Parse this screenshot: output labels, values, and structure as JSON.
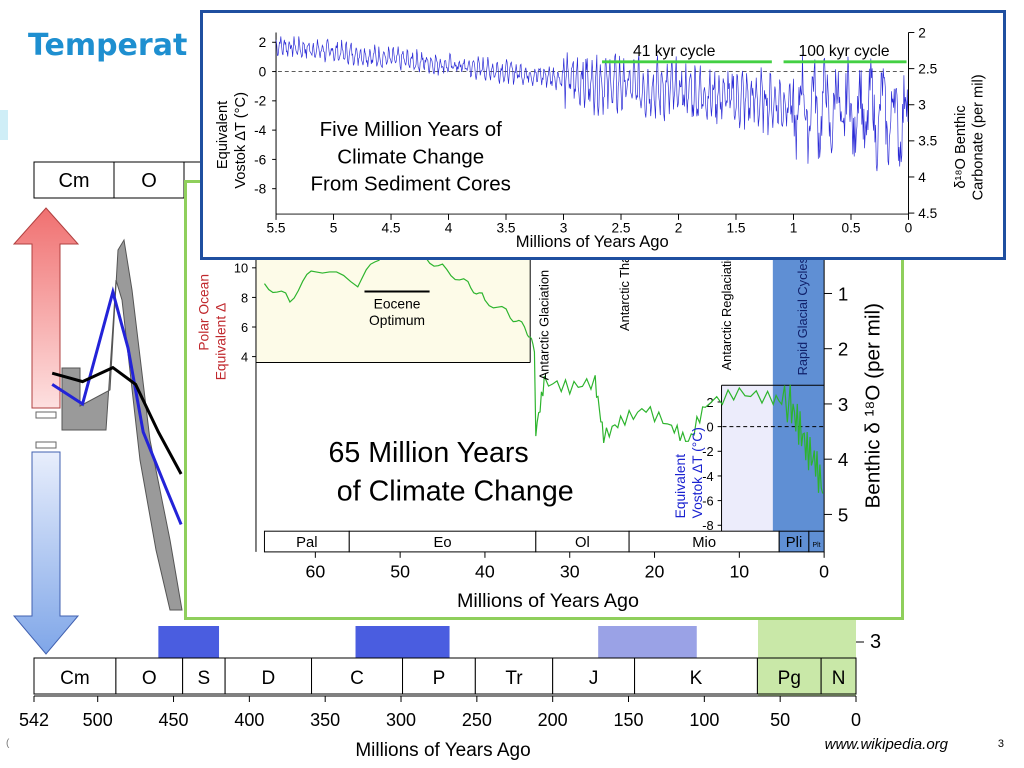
{
  "slide": {
    "title": "Temperat",
    "source": "www.wikipedia.org",
    "page_number": "3",
    "copyright_mark": "("
  },
  "chart_data": [
    {
      "id": "phanerozoic",
      "type": "line",
      "xlabel": "Millions of Years Ago",
      "x_ticks": [
        "542",
        "500",
        "450",
        "400",
        "350",
        "300",
        "250",
        "200",
        "150",
        "100",
        "50",
        "0"
      ],
      "xlim": [
        542,
        0
      ],
      "periods": [
        "Cm",
        "O",
        "S",
        "D",
        "C",
        "P",
        "Tr",
        "J",
        "K",
        "Pg",
        "N"
      ],
      "period_bounds": [
        542,
        488,
        444,
        416,
        359,
        299,
        251,
        200,
        146,
        65,
        23,
        0
      ],
      "glacial_bars": [
        {
          "from": 460,
          "to": 420,
          "color": "#4a5de0"
        },
        {
          "from": 330,
          "to": 268,
          "color": "#4a5de0"
        },
        {
          "from": 170,
          "to": 105,
          "color": "#9aa2e6"
        },
        {
          "from": 40,
          "to": 0,
          "color": "#7a8aa8"
        }
      ],
      "right_tick": "3",
      "series": [
        {
          "values": [
            [
              530,
              0.2
            ],
            [
              510,
              -0.5
            ],
            [
              490,
              3.5
            ],
            [
              480,
              1.5
            ],
            [
              470,
              -1.5
            ],
            [
              455,
              -3.5
            ],
            [
              445,
              -4.8
            ]
          ]
        },
        {
          "values": [
            [
              530,
              0.6
            ],
            [
              510,
              0.3
            ],
            [
              490,
              0.8
            ],
            [
              475,
              0.2
            ],
            [
              460,
              -1.5
            ],
            [
              445,
              -3.0
            ]
          ]
        }
      ]
    },
    {
      "id": "65-million",
      "type": "line",
      "title": "65 Million Years of Climate Change",
      "xlabel": "Millions of Years Ago",
      "x_ticks": [
        "60",
        "50",
        "40",
        "30",
        "20",
        "10",
        "0"
      ],
      "xlim": [
        67,
        0
      ],
      "ylabel_right": "Benthic δ¹⁸O (per mil)",
      "y_ticks_right": [
        "1",
        "2",
        "3",
        "4",
        "5"
      ],
      "ylabel_left_polar": "Polar Ocean Equivalent Δ",
      "y_ticks_left_polar": [
        "10",
        "8",
        "6",
        "4"
      ],
      "ylabel_left_vostok": "Equivalent Vostok ΔT (°C)",
      "y_ticks_left_vostok": [
        "2",
        "0",
        "-2",
        "-4",
        "-6",
        "-8"
      ],
      "epochs": [
        "Pal",
        "Eo",
        "Ol",
        "Mio",
        "Pli",
        "Plt"
      ],
      "epoch_bounds": [
        66,
        56,
        34,
        23,
        5.3,
        1.8,
        0
      ],
      "annotations": [
        "Eocene Optimum",
        "Antarctic Glaciation",
        "Antarctic Thawing",
        "Antarctic Reglaciation",
        "Rapid Glacial Cycles"
      ],
      "series": [
        {
          "color": "#2db42d",
          "values": [
            [
              66,
              8
            ],
            [
              63,
              7
            ],
            [
              60,
              9
            ],
            [
              55,
              8
            ],
            [
              52,
              10
            ],
            [
              50,
              11
            ],
            [
              48,
              10
            ],
            [
              45,
              9
            ],
            [
              42,
              8
            ],
            [
              40,
              7
            ],
            [
              37,
              6
            ],
            [
              35,
              5
            ],
            [
              34,
              3.5
            ],
            [
              33,
              2.6
            ],
            [
              30,
              2.7
            ],
            [
              27,
              2.6
            ],
            [
              26,
              3.6
            ],
            [
              24,
              3.3
            ],
            [
              21,
              3.1
            ],
            [
              18,
              3.4
            ],
            [
              16,
              3.7
            ],
            [
              14,
              3.0
            ],
            [
              10,
              2.8
            ],
            [
              6,
              2.9
            ],
            [
              4,
              3.0
            ],
            [
              3,
              3.4
            ],
            [
              2,
              3.8
            ],
            [
              1,
              4.1
            ],
            [
              0,
              4.6
            ]
          ]
        }
      ]
    },
    {
      "id": "5-million",
      "type": "line",
      "title": "Five Million Years of Climate Change From Sediment Cores",
      "xlabel": "Millions of Years Ago",
      "x_ticks": [
        "5.5",
        "5",
        "4.5",
        "4",
        "3.5",
        "3",
        "2.5",
        "2",
        "1.5",
        "1",
        "0.5",
        "0"
      ],
      "xlim": [
        5.5,
        0
      ],
      "ylabel_left": "Equivalent Vostok ΔT (°C)",
      "y_ticks_left": [
        "2",
        "0",
        "-2",
        "-4",
        "-6",
        "-8"
      ],
      "ylim_left": [
        -9,
        2.5
      ],
      "ylabel_right": "δ¹⁸O Benthic Carbonate (per mil)",
      "y_ticks_right": [
        "2",
        "2.5",
        "3",
        "3.5",
        "4",
        "4.5"
      ],
      "annotations": [
        "41 kyr cycle",
        "100 kyr cycle"
      ],
      "series": [
        {
          "color": "#2b2bd6"
        }
      ]
    }
  ]
}
